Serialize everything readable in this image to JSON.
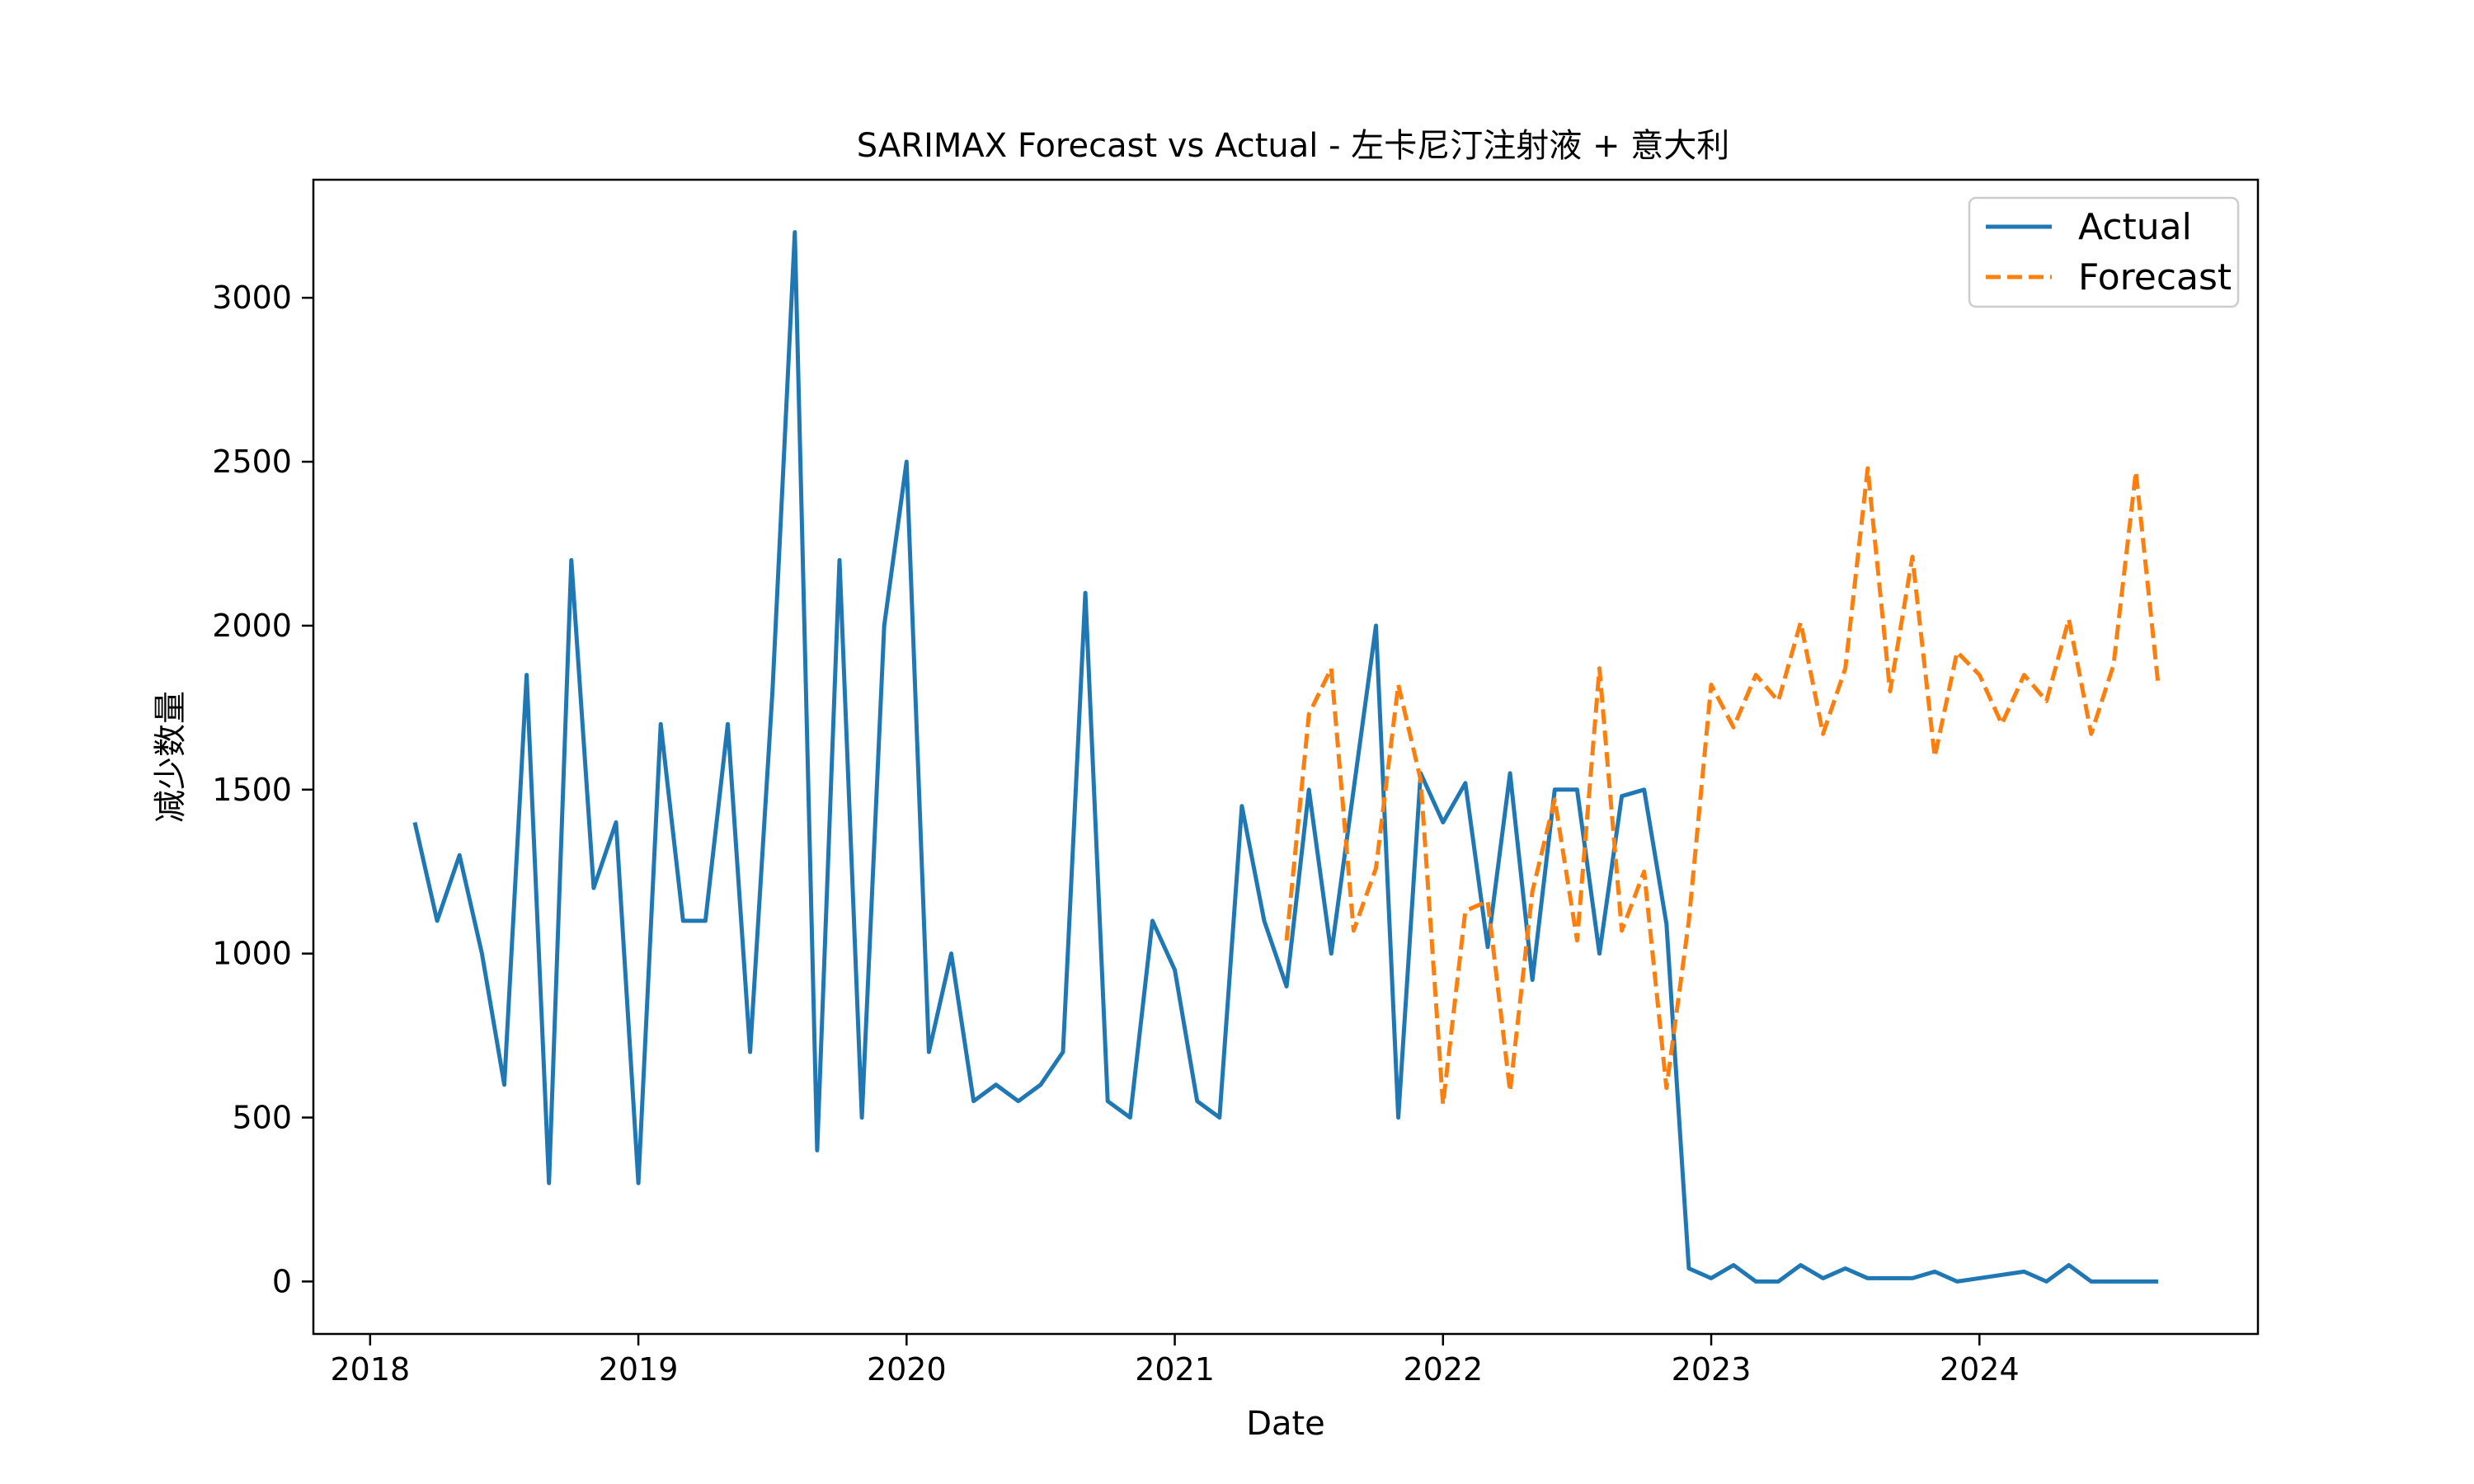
{
  "chart_data": {
    "type": "line",
    "title": "SARIMAX Forecast vs Actual - 左卡尼汀注射液 + 意大利",
    "xlabel": "Date",
    "ylabel": "减少数量",
    "xlim": [
      "2017-10-15",
      "2025-01-15"
    ],
    "ylim": [
      -160,
      3360
    ],
    "x_ticks": [
      "2018",
      "2019",
      "2020",
      "2021",
      "2022",
      "2023",
      "2024"
    ],
    "y_ticks": [
      0,
      500,
      1000,
      1500,
      2000,
      2500,
      3000
    ],
    "grid": false,
    "legend": "top-right",
    "series": [
      {
        "name": "Actual",
        "color": "#1f77b4",
        "style": "solid",
        "x": [
          "2018-03",
          "2018-04",
          "2018-05",
          "2018-06",
          "2018-07",
          "2018-08",
          "2018-09",
          "2018-10",
          "2018-11",
          "2018-12",
          "2019-01",
          "2019-02",
          "2019-03",
          "2019-04",
          "2019-05",
          "2019-06",
          "2019-07",
          "2019-08",
          "2019-09",
          "2019-10",
          "2019-11",
          "2019-12",
          "2020-01",
          "2020-02",
          "2020-03",
          "2020-04",
          "2020-05",
          "2020-06",
          "2020-07",
          "2020-08",
          "2020-09",
          "2020-10",
          "2020-11",
          "2020-12",
          "2021-01",
          "2021-02",
          "2021-03",
          "2021-04",
          "2021-05",
          "2021-06",
          "2021-07",
          "2021-08",
          "2021-09",
          "2021-10",
          "2021-11",
          "2021-12",
          "2022-01",
          "2022-02",
          "2022-03",
          "2022-04",
          "2022-05",
          "2022-06",
          "2022-07",
          "2022-08",
          "2022-09",
          "2022-10",
          "2022-11",
          "2022-12",
          "2023-01",
          "2023-02",
          "2023-03",
          "2023-04",
          "2023-05",
          "2023-06",
          "2023-07",
          "2023-08",
          "2023-09",
          "2023-10",
          "2023-11",
          "2023-12",
          "2024-03",
          "2024-04",
          "2024-05",
          "2024-06",
          "2024-07",
          "2024-08",
          "2024-09"
        ],
        "values": [
          1400,
          1100,
          1300,
          1000,
          600,
          1850,
          300,
          2200,
          1200,
          1400,
          300,
          1700,
          1100,
          1100,
          1700,
          700,
          1800,
          3200,
          400,
          2200,
          500,
          2000,
          2500,
          700,
          1000,
          550,
          600,
          550,
          600,
          700,
          2100,
          550,
          500,
          1100,
          950,
          550,
          500,
          1450,
          1100,
          900,
          1500,
          1000,
          1500,
          2000,
          500,
          1550,
          1400,
          1520,
          1020,
          1550,
          920,
          1500,
          1500,
          1000,
          1480,
          1500,
          1090,
          40,
          10,
          50,
          0,
          0,
          50,
          10,
          40,
          10,
          10,
          10,
          30,
          0,
          30,
          0,
          50,
          0,
          0,
          0,
          0
        ]
      },
      {
        "name": "Forecast",
        "color": "#ff7f0e",
        "style": "dashed",
        "x": [
          "2021-06",
          "2021-07",
          "2021-08",
          "2021-09",
          "2021-10",
          "2021-11",
          "2021-12",
          "2022-01",
          "2022-02",
          "2022-03",
          "2022-04",
          "2022-05",
          "2022-06",
          "2022-07",
          "2022-08",
          "2022-09",
          "2022-10",
          "2022-11",
          "2022-12",
          "2023-01",
          "2023-02",
          "2023-03",
          "2023-04",
          "2023-05",
          "2023-06",
          "2023-07",
          "2023-08",
          "2023-09",
          "2023-10",
          "2023-11",
          "2023-12",
          "2024-01",
          "2024-02",
          "2024-03",
          "2024-04",
          "2024-05",
          "2024-06",
          "2024-07",
          "2024-08",
          "2024-09"
        ],
        "values": [
          1040,
          1730,
          1870,
          1070,
          1260,
          1820,
          1530,
          540,
          1130,
          1160,
          580,
          1190,
          1470,
          1040,
          1870,
          1070,
          1250,
          590,
          1100,
          1820,
          1690,
          1850,
          1770,
          2010,
          1670,
          1870,
          2480,
          1800,
          2210,
          1600,
          1920,
          1850,
          1700,
          1850,
          1770,
          2020,
          1670,
          1880,
          2470,
          1820
        ]
      }
    ]
  }
}
